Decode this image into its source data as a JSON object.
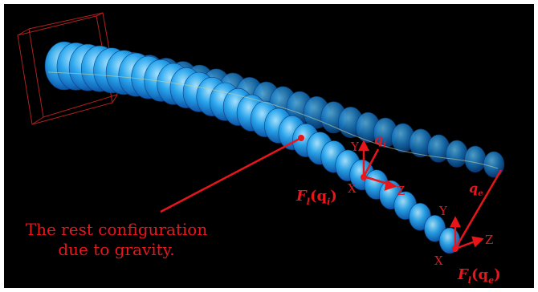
{
  "caption": {
    "line1": "The rest configuration",
    "line2": "due to gravity."
  },
  "labels": {
    "force_inner_prefix": "F",
    "force_inner_sub": "l",
    "force_inner_arg": "(q",
    "force_inner_arg_sub": "i",
    "force_inner_close": ")",
    "force_end_prefix": "F",
    "force_end_sub": "l",
    "force_end_arg": "(q",
    "force_end_arg_sub": "e",
    "force_end_close": ")",
    "q_inner": "q",
    "q_inner_sub": "i",
    "q_end": "q",
    "q_end_sub": "e",
    "axis_y1": "Y",
    "axis_x1": "X",
    "axis_z1": "Z",
    "axis_y2": "Y",
    "axis_x2": "X",
    "axis_z2": "Z"
  },
  "colors": {
    "background": "#000000",
    "annotation": "#e8151b",
    "rod_light": "#7fd4ff",
    "rod_mid": "#2aa7ee",
    "rod_dark": "#0a4fa8",
    "box": "#b02020"
  }
}
